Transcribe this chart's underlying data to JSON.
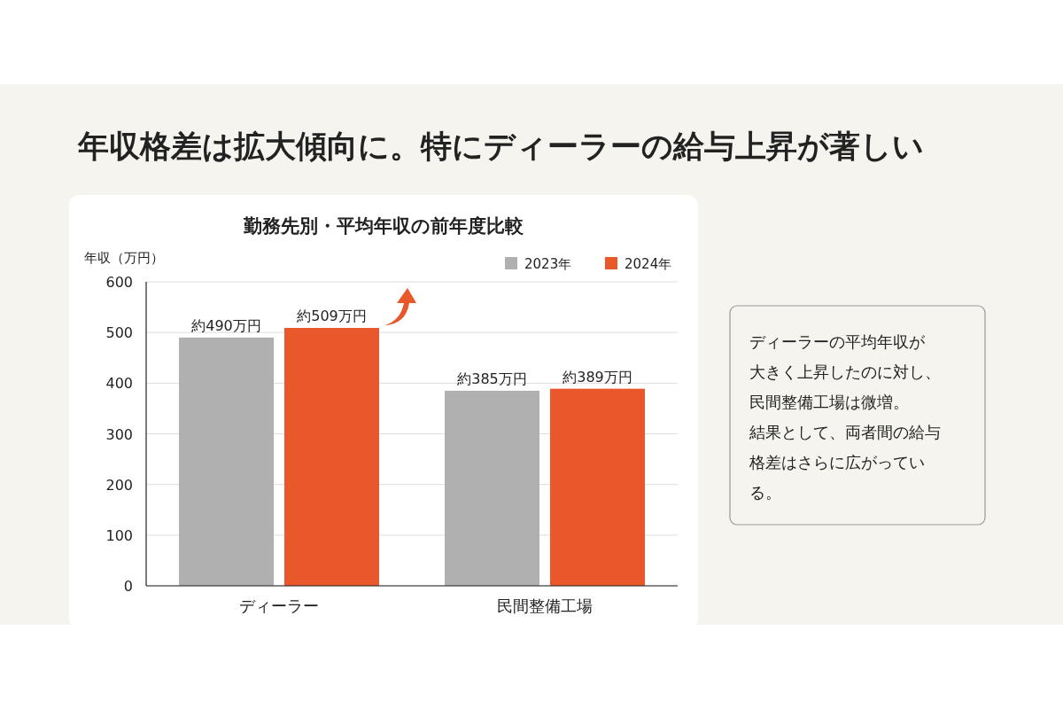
{
  "chart_data": {
    "type": "bar",
    "title": "年収格差は拡大傾向に。特にディーラーの給与上昇が著しい",
    "subtitle": "勤務先別・平均年収の前年度比較",
    "ylabel": "年収（万円）",
    "categories": [
      "ディーラー",
      "民間整備工場"
    ],
    "series": [
      {
        "name": "2023年",
        "color": "#b0b0b0",
        "values": [
          490,
          385
        ],
        "value_labels": [
          "約490万円",
          "約385万円"
        ]
      },
      {
        "name": "2024年",
        "color": "#e8582a",
        "values": [
          509,
          389
        ],
        "value_labels": [
          "約509万円",
          "約389万円"
        ]
      }
    ],
    "ylim": [
      0,
      600
    ],
    "yticks": [
      0,
      100,
      200,
      300,
      400,
      500,
      600
    ],
    "grid": "y",
    "legend": "top right",
    "annotations": [
      "ディーラーの平均年収が",
      "大きく上昇したのに対し、",
      "民間整備工場は微増。",
      "結果として、両者間の給与",
      "格差はさらに広がってい",
      "る。"
    ]
  }
}
